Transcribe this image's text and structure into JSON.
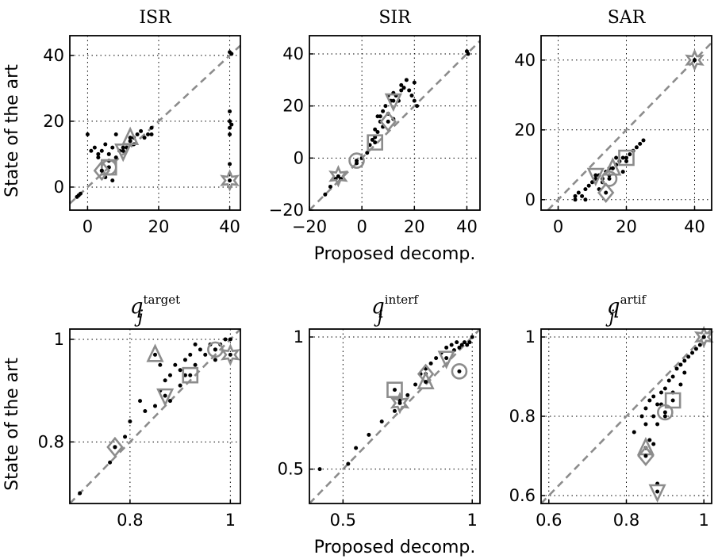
{
  "colors": {
    "points": "#000000",
    "markers": "#8c8c8c",
    "diagonal": "#8c8c8c"
  },
  "chart_data": [
    {
      "type": "scatter",
      "title": "ISR",
      "xlabel": "",
      "ylabel": "State of the art",
      "xlim": [
        -5,
        43
      ],
      "ylim": [
        -7,
        46
      ],
      "xticks": [
        0,
        20,
        40
      ],
      "xticklabels": [
        "0",
        "20",
        "40"
      ],
      "yticks": [
        0,
        20,
        40
      ],
      "yticklabels": [
        "0",
        "20",
        "40"
      ],
      "grid": true,
      "diagonal": true,
      "points": [
        [
          -3,
          -3
        ],
        [
          -2.5,
          -2.5
        ],
        [
          -2,
          -2
        ],
        [
          0,
          16
        ],
        [
          1,
          11
        ],
        [
          2,
          12
        ],
        [
          3,
          10
        ],
        [
          3,
          9
        ],
        [
          4,
          11
        ],
        [
          4,
          5
        ],
        [
          5,
          13
        ],
        [
          5,
          3
        ],
        [
          6,
          10
        ],
        [
          6,
          8
        ],
        [
          7,
          12
        ],
        [
          7,
          2
        ],
        [
          8,
          9
        ],
        [
          8,
          16
        ],
        [
          9,
          11
        ],
        [
          10,
          11
        ],
        [
          10,
          12
        ],
        [
          11,
          12
        ],
        [
          12,
          14
        ],
        [
          13,
          13
        ],
        [
          13,
          15
        ],
        [
          14,
          16
        ],
        [
          15,
          17
        ],
        [
          16,
          15
        ],
        [
          17,
          16
        ],
        [
          18,
          16
        ],
        [
          18,
          18
        ],
        [
          40,
          41
        ],
        [
          40.5,
          40.5
        ],
        [
          40,
          23
        ],
        [
          40,
          20
        ],
        [
          40,
          18
        ],
        [
          40.5,
          19
        ],
        [
          40,
          16
        ],
        [
          40,
          7
        ],
        [
          40,
          4
        ]
      ],
      "markers": [
        {
          "shape": "square",
          "x": 6,
          "y": 6
        },
        {
          "shape": "circle",
          "x": 6,
          "y": 6
        },
        {
          "shape": "diamond",
          "x": 4,
          "y": 5
        },
        {
          "shape": "triangle-up",
          "x": 12,
          "y": 15
        },
        {
          "shape": "triangle-down",
          "x": 10,
          "y": 11
        },
        {
          "shape": "star",
          "x": 40,
          "y": 2
        }
      ]
    },
    {
      "type": "scatter",
      "title": "SIR",
      "xlabel": "Proposed decomp.",
      "ylabel": "",
      "xlim": [
        -20,
        45
      ],
      "ylim": [
        -20,
        47
      ],
      "xticks": [
        -20,
        0,
        20,
        40
      ],
      "xticklabels": [
        "−20",
        "0",
        "20",
        "40"
      ],
      "yticks": [
        -20,
        0,
        20,
        40
      ],
      "yticklabels": [
        "−20",
        "0",
        "20",
        "40"
      ],
      "grid": true,
      "diagonal": true,
      "points": [
        [
          -14,
          -14
        ],
        [
          -12,
          -11
        ],
        [
          -10,
          -8
        ],
        [
          -8,
          -8
        ],
        [
          -2,
          -2
        ],
        [
          0,
          0
        ],
        [
          2,
          2
        ],
        [
          3,
          5
        ],
        [
          4,
          7
        ],
        [
          5,
          8
        ],
        [
          5,
          11
        ],
        [
          6,
          10
        ],
        [
          7,
          14
        ],
        [
          7,
          16
        ],
        [
          8,
          18
        ],
        [
          9,
          20
        ],
        [
          10,
          17
        ],
        [
          10,
          24
        ],
        [
          11,
          22
        ],
        [
          12,
          15
        ],
        [
          12,
          25
        ],
        [
          13,
          24
        ],
        [
          14,
          22
        ],
        [
          15,
          26
        ],
        [
          15,
          28
        ],
        [
          16,
          27
        ],
        [
          17,
          30
        ],
        [
          18,
          26
        ],
        [
          19,
          24
        ],
        [
          20,
          29
        ],
        [
          20,
          22
        ],
        [
          21,
          20
        ],
        [
          6,
          16
        ],
        [
          8,
          12
        ],
        [
          40,
          41
        ],
        [
          40.5,
          40
        ]
      ],
      "markers": [
        {
          "shape": "star",
          "x": -9,
          "y": -7
        },
        {
          "shape": "circle",
          "x": -2,
          "y": -1
        },
        {
          "shape": "square",
          "x": 5,
          "y": 6
        },
        {
          "shape": "diamond",
          "x": 10,
          "y": 14
        },
        {
          "shape": "triangle-down",
          "x": 12,
          "y": 22
        }
      ]
    },
    {
      "type": "scatter",
      "title": "SAR",
      "xlabel": "",
      "ylabel": "",
      "xlim": [
        -5,
        45
      ],
      "ylim": [
        -3,
        47
      ],
      "xticks": [
        0,
        20,
        40
      ],
      "xticklabels": [
        "0",
        "20",
        "40"
      ],
      "yticks": [
        0,
        20,
        40
      ],
      "yticklabels": [
        "0",
        "20",
        "40"
      ],
      "grid": true,
      "diagonal": true,
      "points": [
        [
          5,
          0
        ],
        [
          5,
          1
        ],
        [
          6,
          2
        ],
        [
          7,
          1
        ],
        [
          8,
          0
        ],
        [
          8,
          3
        ],
        [
          9,
          4
        ],
        [
          10,
          5
        ],
        [
          11,
          6
        ],
        [
          12,
          7
        ],
        [
          13,
          6
        ],
        [
          14,
          8
        ],
        [
          15,
          7
        ],
        [
          16,
          9
        ],
        [
          17,
          10
        ],
        [
          18,
          11
        ],
        [
          19,
          12
        ],
        [
          20,
          11
        ],
        [
          21,
          13
        ],
        [
          22,
          14
        ],
        [
          23,
          15
        ],
        [
          24,
          16
        ],
        [
          25,
          17
        ],
        [
          12,
          3
        ],
        [
          13,
          5
        ],
        [
          15,
          9
        ],
        [
          17,
          12
        ],
        [
          19,
          8
        ],
        [
          40,
          40
        ]
      ],
      "markers": [
        {
          "shape": "star",
          "x": 40,
          "y": 40
        },
        {
          "shape": "square",
          "x": 20,
          "y": 12
        },
        {
          "shape": "triangle-up",
          "x": 16,
          "y": 9
        },
        {
          "shape": "triangle-down",
          "x": 11,
          "y": 7
        },
        {
          "shape": "circle",
          "x": 15,
          "y": 6
        },
        {
          "shape": "diamond",
          "x": 14,
          "y": 2
        }
      ]
    },
    {
      "type": "scatter",
      "title": "q",
      "title_sup": "target",
      "title_sub": "j",
      "xlabel": "",
      "ylabel": "State of the art",
      "xlim": [
        0.68,
        1.02
      ],
      "ylim": [
        0.68,
        1.02
      ],
      "xticks": [
        0.8,
        1
      ],
      "xticklabels": [
        "0.8",
        "1"
      ],
      "yticks": [
        0.8,
        1
      ],
      "yticklabels": [
        "0.8",
        "1"
      ],
      "grid": true,
      "diagonal": true,
      "points": [
        [
          0.7,
          0.7
        ],
        [
          0.76,
          0.76
        ],
        [
          0.77,
          0.79
        ],
        [
          0.79,
          0.81
        ],
        [
          0.8,
          0.84
        ],
        [
          0.82,
          0.88
        ],
        [
          0.83,
          0.86
        ],
        [
          0.85,
          0.87
        ],
        [
          0.86,
          0.9
        ],
        [
          0.87,
          0.92
        ],
        [
          0.88,
          0.93
        ],
        [
          0.89,
          0.95
        ],
        [
          0.9,
          0.94
        ],
        [
          0.91,
          0.96
        ],
        [
          0.92,
          0.97
        ],
        [
          0.93,
          0.95
        ],
        [
          0.94,
          0.98
        ],
        [
          0.95,
          0.97
        ],
        [
          0.96,
          0.99
        ],
        [
          0.97,
          0.98
        ],
        [
          0.98,
          0.99
        ],
        [
          0.99,
          1.0
        ],
        [
          1.0,
          1.0
        ],
        [
          0.88,
          0.88
        ],
        [
          0.9,
          0.91
        ],
        [
          0.93,
          0.99
        ],
        [
          0.97,
          0.96
        ],
        [
          0.86,
          0.95
        ],
        [
          0.91,
          0.93
        ]
      ],
      "markers": [
        {
          "shape": "triangle-up",
          "x": 0.85,
          "y": 0.97
        },
        {
          "shape": "triangle-down",
          "x": 0.87,
          "y": 0.89
        },
        {
          "shape": "square",
          "x": 0.92,
          "y": 0.93
        },
        {
          "shape": "diamond",
          "x": 0.77,
          "y": 0.79
        },
        {
          "shape": "circle",
          "x": 0.97,
          "y": 0.98
        },
        {
          "shape": "star",
          "x": 1.0,
          "y": 0.97
        }
      ]
    },
    {
      "type": "scatter",
      "title": "q",
      "title_sup": "interf",
      "title_sub": "j",
      "xlabel": "Proposed decomp.",
      "ylabel": "",
      "xlim": [
        0.37,
        1.03
      ],
      "ylim": [
        0.37,
        1.03
      ],
      "xticks": [
        0.5,
        1
      ],
      "xticklabels": [
        "0.5",
        "1"
      ],
      "yticks": [
        0.5,
        1
      ],
      "yticklabels": [
        "0.5",
        "1"
      ],
      "grid": true,
      "diagonal": true,
      "points": [
        [
          0.41,
          0.5
        ],
        [
          0.52,
          0.52
        ],
        [
          0.55,
          0.58
        ],
        [
          0.6,
          0.63
        ],
        [
          0.65,
          0.68
        ],
        [
          0.7,
          0.72
        ],
        [
          0.72,
          0.76
        ],
        [
          0.75,
          0.78
        ],
        [
          0.78,
          0.82
        ],
        [
          0.8,
          0.86
        ],
        [
          0.82,
          0.88
        ],
        [
          0.84,
          0.9
        ],
        [
          0.86,
          0.92
        ],
        [
          0.88,
          0.94
        ],
        [
          0.9,
          0.96
        ],
        [
          0.92,
          0.97
        ],
        [
          0.94,
          0.98
        ],
        [
          0.95,
          0.96
        ],
        [
          0.96,
          0.97
        ],
        [
          0.97,
          0.98
        ],
        [
          0.98,
          0.97
        ],
        [
          0.99,
          0.98
        ],
        [
          1.0,
          1.0
        ],
        [
          0.93,
          0.95
        ]
      ],
      "markers": [
        {
          "shape": "square",
          "x": 0.7,
          "y": 0.8
        },
        {
          "shape": "circle",
          "x": 0.95,
          "y": 0.87
        },
        {
          "shape": "diamond",
          "x": 0.82,
          "y": 0.86
        },
        {
          "shape": "triangle-up",
          "x": 0.82,
          "y": 0.83
        },
        {
          "shape": "triangle-down",
          "x": 0.9,
          "y": 0.92
        },
        {
          "shape": "star",
          "x": 0.72,
          "y": 0.75
        }
      ]
    },
    {
      "type": "scatter",
      "title": "q",
      "title_sup": "artif",
      "title_sub": "j",
      "xlabel": "",
      "ylabel": "",
      "xlim": [
        0.58,
        1.02
      ],
      "ylim": [
        0.58,
        1.02
      ],
      "xticks": [
        0.6,
        0.8,
        1
      ],
      "xticklabels": [
        "0.6",
        "0.8",
        "1"
      ],
      "yticks": [
        0.6,
        0.8,
        1
      ],
      "yticklabels": [
        "0.6",
        "0.8",
        "1"
      ],
      "grid": true,
      "diagonal": true,
      "points": [
        [
          0.82,
          0.76
        ],
        [
          0.84,
          0.8
        ],
        [
          0.85,
          0.82
        ],
        [
          0.86,
          0.84
        ],
        [
          0.87,
          0.85
        ],
        [
          0.88,
          0.83
        ],
        [
          0.89,
          0.86
        ],
        [
          0.9,
          0.87
        ],
        [
          0.91,
          0.89
        ],
        [
          0.92,
          0.9
        ],
        [
          0.93,
          0.92
        ],
        [
          0.94,
          0.93
        ],
        [
          0.95,
          0.94
        ],
        [
          0.96,
          0.95
        ],
        [
          0.97,
          0.96
        ],
        [
          0.98,
          0.97
        ],
        [
          0.99,
          0.98
        ],
        [
          1.0,
          1.0
        ],
        [
          0.86,
          0.74
        ],
        [
          0.87,
          0.73
        ],
        [
          0.88,
          0.78
        ],
        [
          0.9,
          0.8
        ],
        [
          0.88,
          0.63
        ],
        [
          0.89,
          0.83
        ],
        [
          0.92,
          0.86
        ],
        [
          0.94,
          0.88
        ],
        [
          0.95,
          0.91
        ],
        [
          0.85,
          0.78
        ],
        [
          0.87,
          0.8
        ]
      ],
      "markers": [
        {
          "shape": "star",
          "x": 1.0,
          "y": 1.0
        },
        {
          "shape": "square",
          "x": 0.92,
          "y": 0.84
        },
        {
          "shape": "circle",
          "x": 0.9,
          "y": 0.81
        },
        {
          "shape": "triangle-up",
          "x": 0.85,
          "y": 0.72
        },
        {
          "shape": "diamond",
          "x": 0.85,
          "y": 0.7
        },
        {
          "shape": "triangle-down",
          "x": 0.88,
          "y": 0.61
        }
      ]
    }
  ]
}
